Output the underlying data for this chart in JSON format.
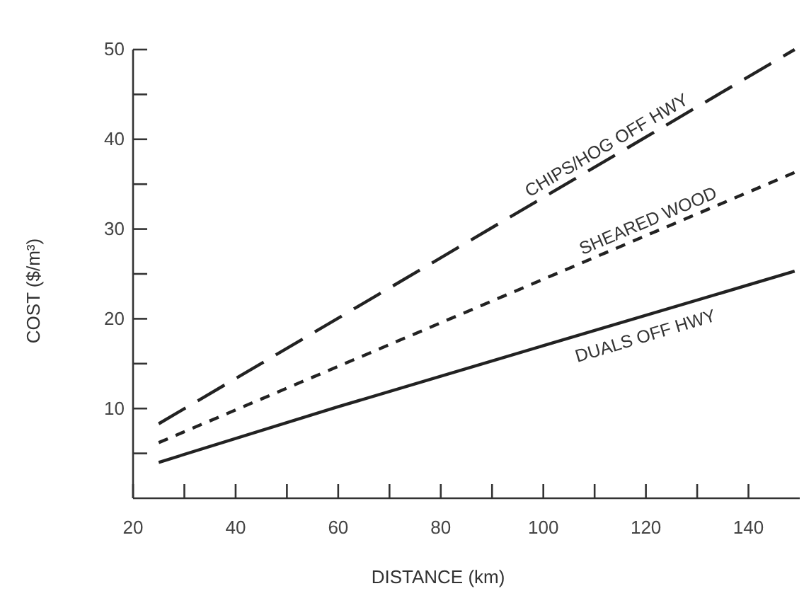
{
  "chart_data": {
    "type": "line",
    "xlabel": "DISTANCE (km)",
    "ylabel": "COST ($/m³)",
    "xlim": [
      20,
      150
    ],
    "ylim": [
      0,
      50
    ],
    "xticks": [
      20,
      {
        "value": 30,
        "label": null
      },
      40,
      {
        "value": 50,
        "label": null
      },
      60,
      {
        "value": 70,
        "label": null
      },
      80,
      {
        "value": 90,
        "label": null
      },
      100,
      {
        "value": 110,
        "label": null
      },
      120,
      {
        "value": 130,
        "label": null
      },
      140
    ],
    "yticks": [
      {
        "value": 5,
        "label": null
      },
      10,
      {
        "value": 15,
        "label": null
      },
      20,
      {
        "value": 25,
        "label": null
      },
      30,
      {
        "value": 35,
        "label": null
      },
      40,
      {
        "value": 45,
        "label": null
      },
      50
    ],
    "grid": false,
    "legend": false,
    "marker": "none",
    "series": [
      {
        "name": "CHIPS/HOG OFF HWY",
        "color": "#222222",
        "line_style": "dashed",
        "x": [
          25,
          149
        ],
        "values": [
          8.3,
          50
        ]
      },
      {
        "name": "SHEARED WOOD",
        "color": "#222222",
        "line_style": "dotted",
        "x": [
          25,
          149
        ],
        "values": [
          6.2,
          36.3
        ]
      },
      {
        "name": "DUALS OFF HWY",
        "color": "#222222",
        "line_style": "solid",
        "x": [
          25,
          60,
          100,
          149
        ],
        "values": [
          4.0,
          10.2,
          17,
          25.3
        ]
      }
    ]
  }
}
